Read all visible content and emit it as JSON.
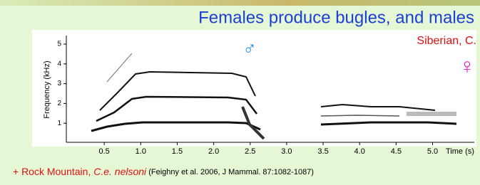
{
  "slide": {
    "title": "Females produce bugles, and males",
    "species_note": "Siberian, C.",
    "male_symbol": "♂",
    "female_symbol": "♀",
    "figure": {
      "y_label": "Frequency (kHz)",
      "x_label": "Time (s)",
      "ylim": [
        0,
        5.5
      ],
      "yticks": [
        1,
        2,
        3,
        4,
        5
      ],
      "xlim": [
        0,
        5.5
      ],
      "xticks": [
        0.5,
        {
          "value": 1,
          "label": "1.0"
        },
        1.5,
        {
          "value": 2,
          "label": "2.0"
        },
        2.5,
        {
          "value": 3,
          "label": "3.0"
        },
        3.5,
        {
          "value": 4,
          "label": "4.0"
        },
        4.5,
        {
          "value": 5,
          "label": "5.0"
        }
      ]
    },
    "footer": {
      "prefix": "+ Rock Mountain, ",
      "species": "C.e. nelsoni",
      "citation": " (Feighny et al. 2006, J Mammal. 87:1082-1087)"
    }
  }
}
